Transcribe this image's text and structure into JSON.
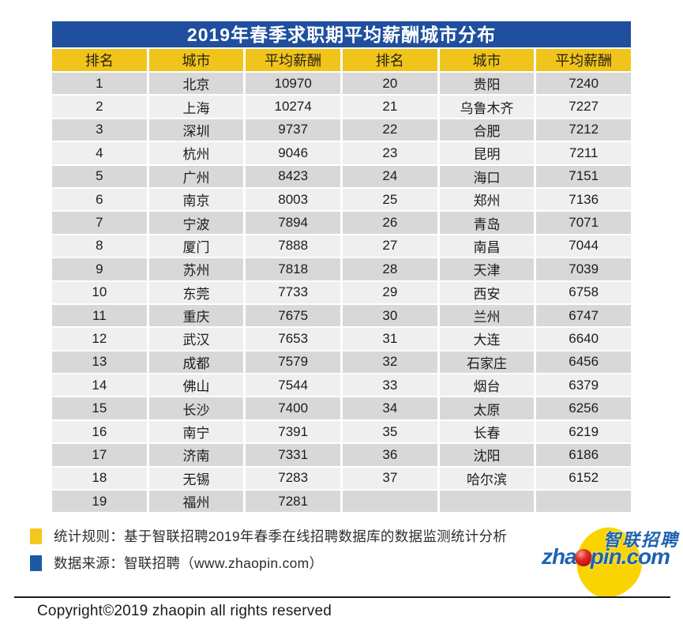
{
  "table": {
    "title": "2019年春季求职期平均薪酬城市分布",
    "columns": [
      "排名",
      "城市",
      "平均薪酬",
      "排名",
      "城市",
      "平均薪酬"
    ],
    "rows": [
      [
        "1",
        "北京",
        "10970",
        "20",
        "贵阳",
        "7240"
      ],
      [
        "2",
        "上海",
        "10274",
        "21",
        "乌鲁木齐",
        "7227"
      ],
      [
        "3",
        "深圳",
        "9737",
        "22",
        "合肥",
        "7212"
      ],
      [
        "4",
        "杭州",
        "9046",
        "23",
        "昆明",
        "7211"
      ],
      [
        "5",
        "广州",
        "8423",
        "24",
        "海口",
        "7151"
      ],
      [
        "6",
        "南京",
        "8003",
        "25",
        "郑州",
        "7136"
      ],
      [
        "7",
        "宁波",
        "7894",
        "26",
        "青岛",
        "7071"
      ],
      [
        "8",
        "厦门",
        "7888",
        "27",
        "南昌",
        "7044"
      ],
      [
        "9",
        "苏州",
        "7818",
        "28",
        "天津",
        "7039"
      ],
      [
        "10",
        "东莞",
        "7733",
        "29",
        "西安",
        "6758"
      ],
      [
        "11",
        "重庆",
        "7675",
        "30",
        "兰州",
        "6747"
      ],
      [
        "12",
        "武汉",
        "7653",
        "31",
        "大连",
        "6640"
      ],
      [
        "13",
        "成都",
        "7579",
        "32",
        "石家庄",
        "6456"
      ],
      [
        "14",
        "佛山",
        "7544",
        "33",
        "烟台",
        "6379"
      ],
      [
        "15",
        "长沙",
        "7400",
        "34",
        "太原",
        "6256"
      ],
      [
        "16",
        "南宁",
        "7391",
        "35",
        "长春",
        "6219"
      ],
      [
        "17",
        "济南",
        "7331",
        "36",
        "沈阳",
        "6186"
      ],
      [
        "18",
        "无锡",
        "7283",
        "37",
        "哈尔滨",
        "6152"
      ],
      [
        "19",
        "福州",
        "7281",
        "",
        "",
        ""
      ]
    ]
  },
  "notes": {
    "rule": "统计规则：基于智联招聘2019年春季在线招聘数据库的数据监测统计分析",
    "source": "数据来源：智联招聘（www.zhaopin.com）"
  },
  "logo": {
    "cn": "智联招聘",
    "en_prefix": "zha",
    "en_suffix": "pin.com"
  },
  "footer": {
    "copyright": "Copyright©2019 zhaopin all rights reserved"
  },
  "colors": {
    "title_bg": "#1f4f9e",
    "header_bg": "#f0c41b",
    "row_odd_bg": "#d8d8d8",
    "row_even_bg": "#efefef",
    "bullet_yellow": "#f5c71c",
    "bullet_blue": "#1b5aa5",
    "logo_blue": "#1e63b0",
    "logo_yellow": "#fad400",
    "logo_red": "#c0161d"
  },
  "chart_data": {
    "type": "table",
    "title": "2019年春季求职期平均薪酬城市分布",
    "columns": [
      "排名",
      "城市",
      "平均薪酬"
    ],
    "rows": [
      [
        1,
        "北京",
        10970
      ],
      [
        2,
        "上海",
        10274
      ],
      [
        3,
        "深圳",
        9737
      ],
      [
        4,
        "杭州",
        9046
      ],
      [
        5,
        "广州",
        8423
      ],
      [
        6,
        "南京",
        8003
      ],
      [
        7,
        "宁波",
        7894
      ],
      [
        8,
        "厦门",
        7888
      ],
      [
        9,
        "苏州",
        7818
      ],
      [
        10,
        "东莞",
        7733
      ],
      [
        11,
        "重庆",
        7675
      ],
      [
        12,
        "武汉",
        7653
      ],
      [
        13,
        "成都",
        7579
      ],
      [
        14,
        "佛山",
        7544
      ],
      [
        15,
        "长沙",
        7400
      ],
      [
        16,
        "南宁",
        7391
      ],
      [
        17,
        "济南",
        7331
      ],
      [
        18,
        "无锡",
        7283
      ],
      [
        19,
        "福州",
        7281
      ],
      [
        20,
        "贵阳",
        7240
      ],
      [
        21,
        "乌鲁木齐",
        7227
      ],
      [
        22,
        "合肥",
        7212
      ],
      [
        23,
        "昆明",
        7211
      ],
      [
        24,
        "海口",
        7151
      ],
      [
        25,
        "郑州",
        7136
      ],
      [
        26,
        "青岛",
        7071
      ],
      [
        27,
        "南昌",
        7044
      ],
      [
        28,
        "天津",
        7039
      ],
      [
        29,
        "西安",
        6758
      ],
      [
        30,
        "兰州",
        6747
      ],
      [
        31,
        "大连",
        6640
      ],
      [
        32,
        "石家庄",
        6456
      ],
      [
        33,
        "烟台",
        6379
      ],
      [
        34,
        "太原",
        6256
      ],
      [
        35,
        "长春",
        6219
      ],
      [
        36,
        "沈阳",
        6186
      ],
      [
        37,
        "哈尔滨",
        6152
      ]
    ]
  }
}
